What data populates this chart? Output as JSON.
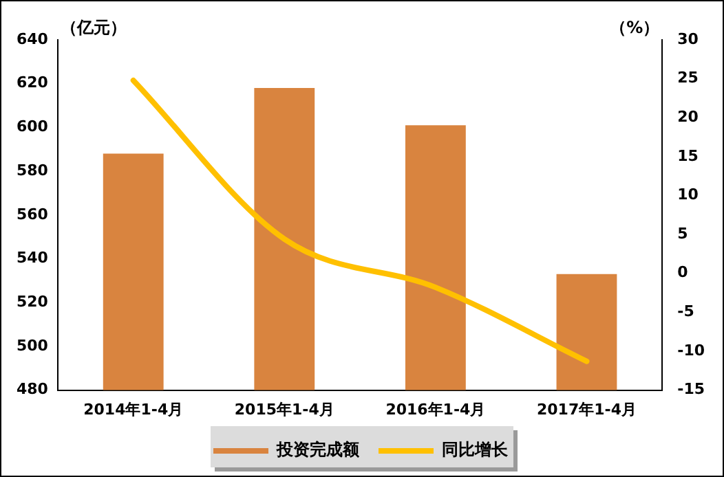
{
  "chart_data": {
    "type": "bar",
    "ylabel": "（亿元）",
    "y2label": "（%）",
    "categories": [
      "2014年1-4月",
      "2015年1-4月",
      "2016年1-4月",
      "2017年1-4月"
    ],
    "series": [
      {
        "name": "投资完成额",
        "color": "#d9843f",
        "values": [
          588,
          618,
          601,
          533
        ]
      },
      {
        "name": "同比增长",
        "type": "line",
        "axis": "y2",
        "color": "#ffc000",
        "values": [
          24.8,
          4.4,
          -1.8,
          -11.3
        ]
      }
    ],
    "ylim": [
      480,
      640
    ],
    "yticks": [
      480,
      500,
      520,
      540,
      560,
      580,
      600,
      620,
      640
    ],
    "y2lim": [
      -15,
      30
    ],
    "y2ticks": [
      -15,
      -10,
      -5,
      0,
      5,
      10,
      15,
      20,
      25,
      30
    ],
    "grid": false,
    "legend": "bottom",
    "marker": "none"
  }
}
